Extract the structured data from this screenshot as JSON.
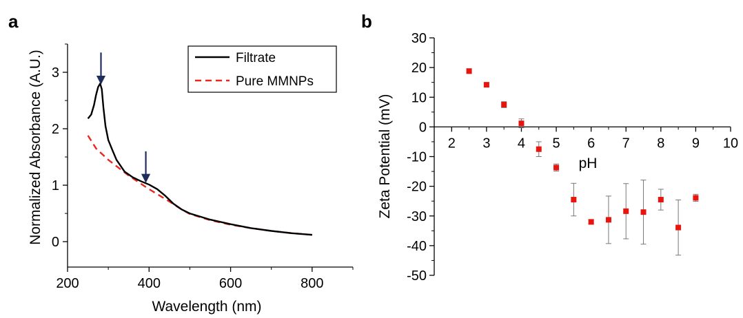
{
  "chart_data": [
    {
      "panel_label": "a",
      "type": "line",
      "xlabel": "Wavelength (nm)",
      "ylabel": "Normalized Absorbance (A.U.)",
      "xlim": [
        200,
        900
      ],
      "ylim": [
        -0.45,
        3.5
      ],
      "xticks": [
        200,
        400,
        600,
        800
      ],
      "yticks": [
        0,
        1,
        2,
        3
      ],
      "legend_position": "top-right",
      "series": [
        {
          "name": "Filtrate",
          "color": "#000000",
          "style": "solid",
          "x": [
            250,
            258,
            265,
            270,
            275,
            280,
            284,
            288,
            293,
            300,
            310,
            320,
            340,
            360,
            380,
            400,
            420,
            440,
            460,
            480,
            500,
            550,
            600,
            650,
            700,
            750,
            800
          ],
          "y": [
            2.18,
            2.25,
            2.42,
            2.6,
            2.74,
            2.8,
            2.7,
            2.38,
            2.05,
            1.8,
            1.62,
            1.45,
            1.24,
            1.14,
            1.07,
            1.01,
            0.93,
            0.81,
            0.67,
            0.57,
            0.5,
            0.39,
            0.31,
            0.24,
            0.19,
            0.15,
            0.12
          ]
        },
        {
          "name": "Pure MMNPs",
          "color": "#e8281e",
          "style": "dashed",
          "x": [
            250,
            270,
            300,
            350,
            400,
            450,
            480,
            500,
            550,
            600,
            650,
            700,
            750,
            800
          ],
          "y": [
            1.88,
            1.65,
            1.45,
            1.17,
            0.93,
            0.71,
            0.57,
            0.49,
            0.38,
            0.3,
            0.24,
            0.19,
            0.15,
            0.12
          ]
        }
      ],
      "annotations": [
        {
          "type": "arrow",
          "x": 282,
          "y_from": 3.35,
          "y_to": 2.86,
          "color": "#1f2d5c"
        },
        {
          "type": "arrow",
          "x": 392,
          "y_from": 1.6,
          "y_to": 1.12,
          "color": "#1f2d5c"
        }
      ]
    },
    {
      "panel_label": "b",
      "type": "scatter",
      "xlabel": "pH",
      "ylabel": "Zeta Potential (mV)",
      "xlim": [
        1.5,
        10
      ],
      "ylim": [
        -50,
        30
      ],
      "xticks": [
        2,
        3,
        4,
        5,
        6,
        7,
        8,
        9,
        10
      ],
      "yticks": [
        30,
        20,
        10,
        0,
        -10,
        -20,
        -30,
        -40,
        -50
      ],
      "x_axis_at_y": 0,
      "series": [
        {
          "color": "#e8150f",
          "x": [
            2.5,
            3.0,
            3.5,
            4.0,
            4.5,
            5.0,
            5.5,
            6.0,
            6.5,
            7.0,
            7.5,
            8.0,
            8.5,
            9.0
          ],
          "y": [
            18.8,
            14.2,
            7.5,
            1.2,
            -7.5,
            -13.7,
            -24.5,
            -32.0,
            -31.3,
            -28.4,
            -28.7,
            -24.5,
            -33.9,
            -23.9
          ],
          "error": [
            0.8,
            0.6,
            1.0,
            1.5,
            2.5,
            1.2,
            5.5,
            0.8,
            8.0,
            9.3,
            10.8,
            3.5,
            9.3,
            1.2
          ]
        }
      ]
    }
  ]
}
